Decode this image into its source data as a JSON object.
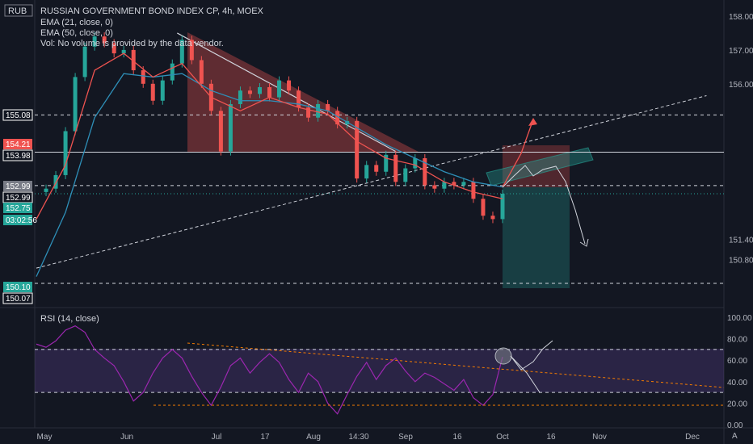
{
  "header": {
    "currency": "RUB",
    "title": "RUSSIAN GOVERNMENT BOND INDEX CP, 4h, MOEX",
    "ema21": "EMA (21, close, 0)",
    "ema50": "EMA (50, close, 0)",
    "vol": "Vol: No volume is provided by the data vendor."
  },
  "rsi_title": "RSI (14, close)",
  "colors": {
    "up": "#26a69a",
    "down": "#ef5350",
    "ema21": "#ef5350",
    "ema50": "#2e8fb8",
    "rsi": "#9c27b0",
    "bg": "#131722"
  },
  "badges": [
    {
      "text": "155.08",
      "color": "#131722",
      "text_color": "#d1d4dc",
      "border": "#ffffff"
    },
    {
      "text": "154.21",
      "color": "#ef5350",
      "text_color": "#ffffff"
    },
    {
      "text": "153.98",
      "color": "#131722",
      "text_color": "#d1d4dc",
      "border": "#ffffff"
    },
    {
      "text": "152.99",
      "color": "#787b86",
      "text_color": "#ffffff"
    },
    {
      "text": "152.99",
      "color": "#131722",
      "text_color": "#d1d4dc",
      "border": "#ffffff"
    },
    {
      "text": "152.75",
      "color": "#26a69a",
      "text_color": "#ffffff"
    },
    {
      "text": "03:02:56",
      "color": "#26a69a",
      "text_color": "#ffffff"
    },
    {
      "text": "150.10",
      "color": "#26a69a",
      "text_color": "#ffffff"
    },
    {
      "text": "150.07",
      "color": "#131722",
      "text_color": "#d1d4dc",
      "border": "#ffffff"
    }
  ],
  "chart_data": [
    {
      "type": "candlestick",
      "title": "RUSSIAN GOVERNMENT BOND INDEX CP, 4h, MOEX",
      "ylim": [
        149.8,
        158.2
      ],
      "yticks": [
        "158.00",
        "157.00",
        "156.00",
        "151.40",
        "150.80"
      ],
      "xticks": [
        "May",
        "Jun",
        "Jul",
        "17",
        "Aug",
        "14:30",
        "Sep",
        "16",
        "Oct",
        "16",
        "Nov",
        "Dec"
      ],
      "close_path": [
        [
          0,
          152.8
        ],
        [
          2,
          152.9
        ],
        [
          4,
          153.3
        ],
        [
          6,
          154.6
        ],
        [
          8,
          156.2
        ],
        [
          10,
          157.1
        ],
        [
          12,
          157.4
        ],
        [
          14,
          157.2
        ],
        [
          16,
          156.9
        ],
        [
          18,
          157.0
        ],
        [
          20,
          156.4
        ],
        [
          22,
          156.0
        ],
        [
          24,
          155.5
        ],
        [
          26,
          156.1
        ],
        [
          28,
          156.6
        ],
        [
          30,
          157.3
        ],
        [
          32,
          156.7
        ],
        [
          34,
          156.0
        ],
        [
          36,
          155.2
        ],
        [
          38,
          154.0
        ],
        [
          40,
          155.4
        ],
        [
          42,
          155.8
        ],
        [
          44,
          155.7
        ],
        [
          46,
          155.9
        ],
        [
          48,
          155.6
        ],
        [
          50,
          156.1
        ],
        [
          52,
          155.8
        ],
        [
          54,
          155.3
        ],
        [
          56,
          155.0
        ],
        [
          58,
          155.4
        ],
        [
          60,
          155.2
        ],
        [
          62,
          154.8
        ],
        [
          64,
          154.9
        ],
        [
          66,
          153.2
        ],
        [
          68,
          153.6
        ],
        [
          70,
          153.4
        ],
        [
          72,
          153.9
        ],
        [
          74,
          153.1
        ],
        [
          76,
          153.5
        ],
        [
          78,
          153.8
        ],
        [
          80,
          153.0
        ],
        [
          82,
          152.9
        ],
        [
          84,
          153.1
        ],
        [
          86,
          153.0
        ],
        [
          88,
          153.1
        ],
        [
          90,
          152.6
        ],
        [
          92,
          152.1
        ],
        [
          94,
          152.0
        ],
        [
          96,
          152.75
        ]
      ],
      "ema21_path": [
        [
          0,
          152.0
        ],
        [
          6,
          153.6
        ],
        [
          12,
          156.4
        ],
        [
          18,
          156.9
        ],
        [
          24,
          156.2
        ],
        [
          30,
          156.6
        ],
        [
          36,
          155.6
        ],
        [
          42,
          155.2
        ],
        [
          48,
          155.6
        ],
        [
          54,
          155.3
        ],
        [
          60,
          155.1
        ],
        [
          66,
          154.3
        ],
        [
          72,
          153.8
        ],
        [
          78,
          153.6
        ],
        [
          84,
          153.1
        ],
        [
          90,
          152.8
        ],
        [
          96,
          152.6
        ]
      ],
      "ema50_path": [
        [
          0,
          150.3
        ],
        [
          6,
          152.2
        ],
        [
          12,
          155.0
        ],
        [
          18,
          156.3
        ],
        [
          24,
          156.2
        ],
        [
          30,
          156.3
        ],
        [
          36,
          155.8
        ],
        [
          42,
          155.5
        ],
        [
          48,
          155.5
        ],
        [
          54,
          155.4
        ],
        [
          60,
          155.2
        ],
        [
          66,
          154.7
        ],
        [
          72,
          154.2
        ],
        [
          78,
          153.8
        ],
        [
          84,
          153.4
        ],
        [
          90,
          153.1
        ],
        [
          96,
          152.95
        ]
      ],
      "levels": [
        155.08,
        153.98,
        152.99,
        150.1
      ],
      "trend_from": [
        0,
        150.55
      ],
      "trend_to": [
        138,
        155.65
      ],
      "down_trend_from": [
        29,
        157.5
      ],
      "down_trend_to": [
        74,
        154.0
      ]
    },
    {
      "type": "line",
      "title": "RSI (14, close)",
      "ylim": [
        0,
        100
      ],
      "yticks": [
        "100.00",
        "80.00",
        "60.00",
        "40.00",
        "20.00",
        "0.00"
      ],
      "bands": [
        70,
        30
      ],
      "series": [
        {
          "values": [
            [
              0,
              75
            ],
            [
              2,
              72
            ],
            [
              4,
              78
            ],
            [
              6,
              88
            ],
            [
              8,
              92
            ],
            [
              10,
              86
            ],
            [
              12,
              70
            ],
            [
              14,
              62
            ],
            [
              16,
              55
            ],
            [
              18,
              40
            ],
            [
              20,
              22
            ],
            [
              22,
              30
            ],
            [
              24,
              48
            ],
            [
              26,
              62
            ],
            [
              28,
              70
            ],
            [
              30,
              62
            ],
            [
              32,
              45
            ],
            [
              34,
              30
            ],
            [
              36,
              18
            ],
            [
              38,
              35
            ],
            [
              40,
              55
            ],
            [
              42,
              62
            ],
            [
              44,
              48
            ],
            [
              46,
              58
            ],
            [
              48,
              66
            ],
            [
              50,
              58
            ],
            [
              52,
              42
            ],
            [
              54,
              30
            ],
            [
              56,
              48
            ],
            [
              58,
              40
            ],
            [
              60,
              20
            ],
            [
              62,
              10
            ],
            [
              64,
              28
            ],
            [
              66,
              45
            ],
            [
              68,
              58
            ],
            [
              70,
              42
            ],
            [
              72,
              55
            ],
            [
              74,
              62
            ],
            [
              76,
              50
            ],
            [
              78,
              40
            ],
            [
              80,
              48
            ],
            [
              82,
              44
            ],
            [
              84,
              38
            ],
            [
              86,
              32
            ],
            [
              88,
              42
            ],
            [
              90,
              25
            ],
            [
              92,
              18
            ],
            [
              94,
              28
            ],
            [
              96,
              63
            ]
          ]
        }
      ]
    }
  ]
}
